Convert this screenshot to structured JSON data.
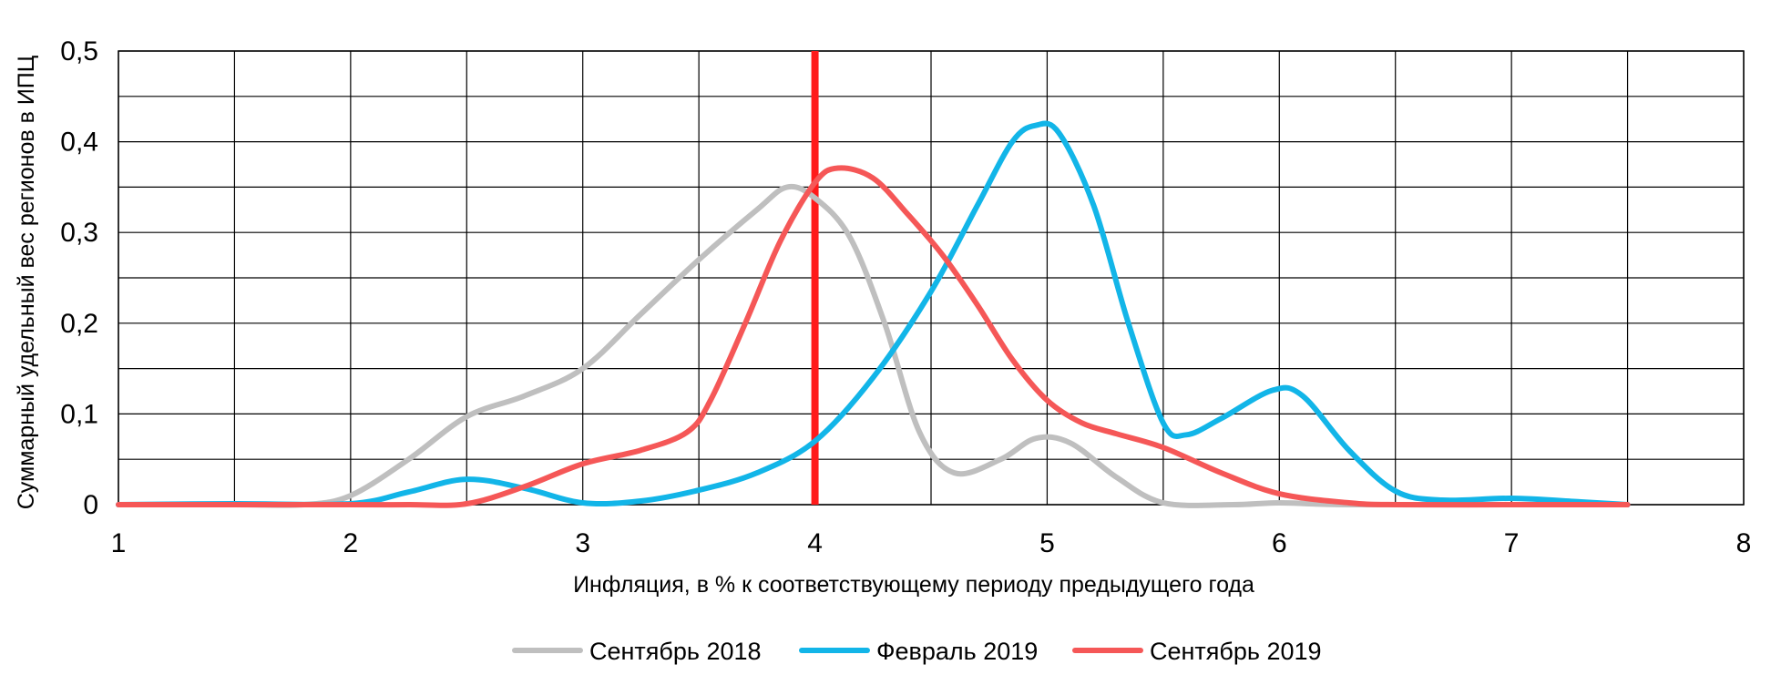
{
  "chart_data": {
    "type": "line",
    "title": "",
    "xlabel": "Инфляция,  в % к соответствующему периоду предыдущего года",
    "ylabel": "Суммарный удельный вес регионов в ИПЦ",
    "xlim": [
      1,
      8
    ],
    "ylim": [
      0,
      0.5
    ],
    "x_ticks": [
      1,
      2,
      3,
      4,
      5,
      6,
      7,
      8
    ],
    "x_tick_labels": [
      "1",
      "2",
      "3",
      "4",
      "5",
      "6",
      "7",
      "8"
    ],
    "y_ticks": [
      0,
      0.1,
      0.2,
      0.3,
      0.4,
      0.5
    ],
    "y_tick_labels": [
      "0",
      "0,1",
      "0,2",
      "0,3",
      "0,4",
      "0,5"
    ],
    "grid": {
      "x_step": 0.5,
      "y_step": 0.05
    },
    "reference_line": {
      "x": 4,
      "color": "#ff1a1a"
    },
    "legend_position": "bottom-center",
    "series": [
      {
        "name": "Сентябрь 2018",
        "color": "#bfbfbf",
        "points": [
          [
            1,
            0
          ],
          [
            1.5,
            0
          ],
          [
            1.8,
            0
          ],
          [
            2,
            0.01
          ],
          [
            2.25,
            0.05
          ],
          [
            2.5,
            0.097
          ],
          [
            2.75,
            0.12
          ],
          [
            3,
            0.15
          ],
          [
            3.25,
            0.21
          ],
          [
            3.5,
            0.27
          ],
          [
            3.75,
            0.325
          ],
          [
            3.88,
            0.35
          ],
          [
            4,
            0.338
          ],
          [
            4.15,
            0.295
          ],
          [
            4.3,
            0.2
          ],
          [
            4.45,
            0.08
          ],
          [
            4.6,
            0.035
          ],
          [
            4.8,
            0.05
          ],
          [
            4.95,
            0.073
          ],
          [
            5.1,
            0.068
          ],
          [
            5.3,
            0.03
          ],
          [
            5.5,
            0.002
          ],
          [
            5.8,
            0
          ],
          [
            6,
            0.002
          ],
          [
            6.3,
            0
          ],
          [
            7,
            0
          ],
          [
            7.5,
            0
          ]
        ]
      },
      {
        "name": "Февраль 2019",
        "color": "#12b5e8",
        "points": [
          [
            1,
            0
          ],
          [
            1.5,
            0.001
          ],
          [
            2,
            0.001
          ],
          [
            2.25,
            0.014
          ],
          [
            2.5,
            0.028
          ],
          [
            2.75,
            0.018
          ],
          [
            3,
            0.002
          ],
          [
            3.25,
            0.004
          ],
          [
            3.5,
            0.016
          ],
          [
            3.75,
            0.035
          ],
          [
            4,
            0.07
          ],
          [
            4.25,
            0.14
          ],
          [
            4.5,
            0.235
          ],
          [
            4.7,
            0.33
          ],
          [
            4.85,
            0.4
          ],
          [
            4.95,
            0.418
          ],
          [
            5.05,
            0.41
          ],
          [
            5.2,
            0.33
          ],
          [
            5.35,
            0.2
          ],
          [
            5.5,
            0.09
          ],
          [
            5.6,
            0.077
          ],
          [
            5.75,
            0.095
          ],
          [
            5.97,
            0.126
          ],
          [
            6.1,
            0.12
          ],
          [
            6.3,
            0.06
          ],
          [
            6.5,
            0.015
          ],
          [
            6.7,
            0.005
          ],
          [
            7,
            0.007
          ],
          [
            7.3,
            0.003
          ],
          [
            7.5,
            0
          ]
        ]
      },
      {
        "name": "Сентябрь 2019",
        "color": "#f55757",
        "points": [
          [
            1,
            0
          ],
          [
            1.5,
            0
          ],
          [
            2,
            0
          ],
          [
            2.25,
            0
          ],
          [
            2.5,
            0.001
          ],
          [
            2.75,
            0.02
          ],
          [
            3,
            0.045
          ],
          [
            3.25,
            0.06
          ],
          [
            3.45,
            0.08
          ],
          [
            3.55,
            0.115
          ],
          [
            3.7,
            0.2
          ],
          [
            3.85,
            0.29
          ],
          [
            4,
            0.355
          ],
          [
            4.1,
            0.371
          ],
          [
            4.25,
            0.36
          ],
          [
            4.4,
            0.32
          ],
          [
            4.55,
            0.275
          ],
          [
            4.7,
            0.22
          ],
          [
            4.85,
            0.16
          ],
          [
            5,
            0.115
          ],
          [
            5.15,
            0.09
          ],
          [
            5.3,
            0.078
          ],
          [
            5.5,
            0.063
          ],
          [
            5.75,
            0.035
          ],
          [
            6,
            0.012
          ],
          [
            6.3,
            0.002
          ],
          [
            6.5,
            0
          ],
          [
            7,
            0
          ],
          [
            7.5,
            0
          ]
        ]
      }
    ]
  }
}
